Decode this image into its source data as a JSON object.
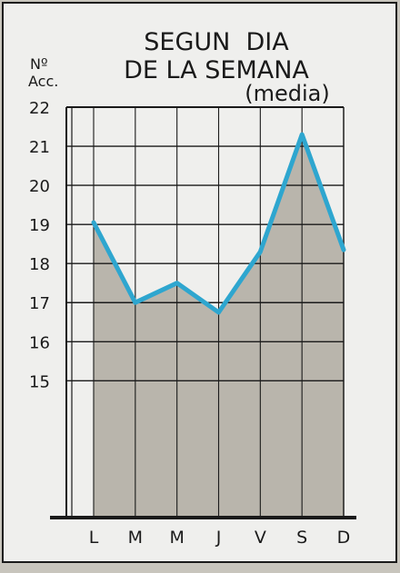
{
  "chart_data": {
    "type": "area",
    "title": [
      "SEGUN  DIA",
      "DE LA SEMANA"
    ],
    "subtitle": "(media)",
    "ylabel": [
      "Nº",
      "Acc."
    ],
    "categories": [
      "L",
      "M",
      "M",
      "J",
      "V",
      "S",
      "D"
    ],
    "series": [
      {
        "values": [
          19.05,
          17.0,
          17.5,
          16.75,
          18.3,
          21.3,
          18.35
        ]
      }
    ],
    "ylim": [
      11.5,
      22
    ],
    "yticks": [
      15,
      16,
      17,
      18,
      19,
      20,
      21,
      22
    ],
    "grid": true,
    "colors": {
      "line": "#2ea6cf",
      "fill": "#b9b5ac",
      "paper": "#efefed",
      "frame": "#1a1a1a"
    }
  }
}
